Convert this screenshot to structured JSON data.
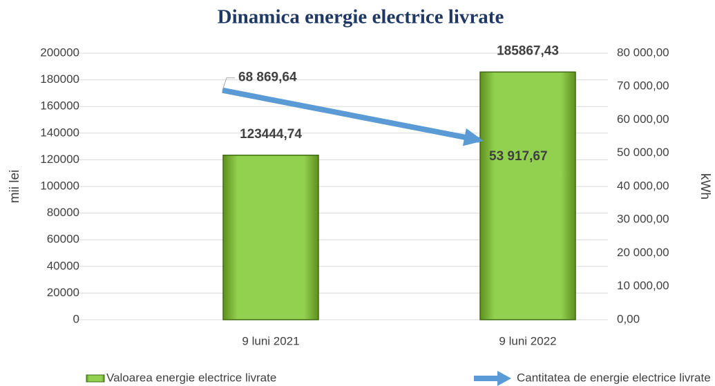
{
  "chart_data": {
    "type": "bar",
    "title": "Dinamica energie electrice livrate",
    "y_label": "mii lei",
    "y2_label": "kWh",
    "categories": [
      "9 luni 2021",
      "9 luni 2022"
    ],
    "series": [
      {
        "name": "Valoarea energie electrice livrate",
        "type": "bar",
        "color": "#92d050",
        "label_color": "#00b050",
        "values": [
          123444.74,
          185867.43
        ],
        "value_labels": [
          "123444,74",
          "185867,43"
        ]
      },
      {
        "name": "Cantitatea de energie electrice livrate",
        "type": "line",
        "axis": "y2",
        "color": "#5b9bd5",
        "label_color": "#2e75b6",
        "values": [
          68869.64,
          53917.67
        ],
        "value_labels": [
          "68 869,64",
          "53 917,67"
        ]
      }
    ],
    "ylim": [
      0,
      200000
    ],
    "yticks": [
      0,
      20000,
      40000,
      60000,
      80000,
      100000,
      120000,
      140000,
      160000,
      180000,
      200000
    ],
    "y2lim": [
      0,
      80000
    ],
    "y2ticks": [
      {
        "value": 0,
        "label": "0,00"
      },
      {
        "value": 10000,
        "label": "10 000,00"
      },
      {
        "value": 20000,
        "label": "20 000,00"
      },
      {
        "value": 30000,
        "label": "30 000,00"
      },
      {
        "value": 40000,
        "label": "40 000,00"
      },
      {
        "value": 50000,
        "label": "50 000,00"
      },
      {
        "value": 60000,
        "label": "60 000,00"
      },
      {
        "value": 70000,
        "label": "70 000,00"
      },
      {
        "value": 80000,
        "label": "80 000,00"
      }
    ],
    "grid": true
  }
}
